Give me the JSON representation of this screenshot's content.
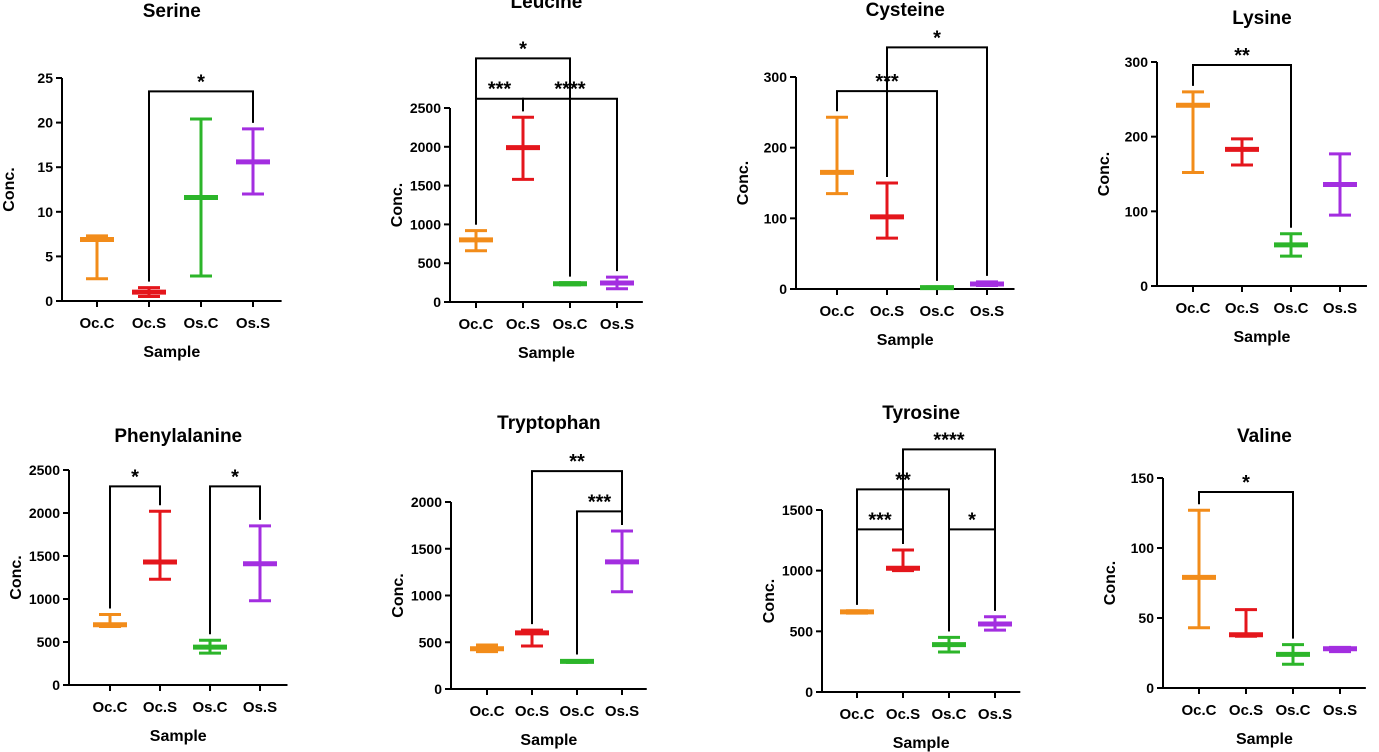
{
  "colors": {
    "Oc.C": "#f28c1a",
    "Oc.S": "#e4161c",
    "Os.C": "#2cb52a",
    "Os.S": "#a32ee0",
    "axis": "#000000"
  },
  "chart_data": [
    {
      "type": "box",
      "title": "Serine",
      "xlabel": "Sample",
      "ylabel": "Conc.",
      "categories": [
        "Oc.C",
        "Oc.S",
        "Os.C",
        "Os.S"
      ],
      "ylim": [
        0,
        25
      ],
      "yticks": [
        "0",
        "5",
        "10",
        "15",
        "20",
        "25"
      ],
      "ytick_values": [
        0,
        5,
        10,
        15,
        20,
        25
      ],
      "series": [
        {
          "category": "Oc.C",
          "min": 2.5,
          "median": 6.9,
          "max": 7.3
        },
        {
          "category": "Oc.S",
          "min": 0.5,
          "median": 1.0,
          "max": 1.5
        },
        {
          "category": "Os.C",
          "min": 2.8,
          "median": 11.6,
          "max": 20.4
        },
        {
          "category": "Os.S",
          "min": 12.0,
          "median": 15.6,
          "max": 19.3
        }
      ],
      "significance": [
        {
          "from": "Oc.S",
          "to": "Os.S",
          "label": "*",
          "y": 23.5
        }
      ]
    },
    {
      "type": "box",
      "title": "Leucine",
      "xlabel": "Sample",
      "ylabel": "Conc.",
      "categories": [
        "Oc.C",
        "Oc.S",
        "Os.C",
        "Os.S"
      ],
      "ylim": [
        0,
        2500
      ],
      "yticks": [
        "0",
        "500",
        "1000",
        "1500",
        "2000",
        "2500"
      ],
      "ytick_values": [
        0,
        500,
        1000,
        1500,
        2000,
        2500
      ],
      "series": [
        {
          "category": "Oc.C",
          "min": 660,
          "median": 800,
          "max": 920
        },
        {
          "category": "Oc.S",
          "min": 1580,
          "median": 1990,
          "max": 2380
        },
        {
          "category": "Os.C",
          "min": 220,
          "median": 235,
          "max": 250
        },
        {
          "category": "Os.S",
          "min": 170,
          "median": 245,
          "max": 320
        }
      ],
      "significance": [
        {
          "from": "Oc.C",
          "to": "Oc.S",
          "label": "***",
          "y": 2620
        },
        {
          "from": "Oc.S",
          "to": "Os.S",
          "label": "****",
          "y": 2620
        },
        {
          "from": "Oc.C",
          "to": "Os.C",
          "label": "*",
          "y": 3140
        }
      ]
    },
    {
      "type": "box",
      "title": "Cysteine",
      "xlabel": "Sample",
      "ylabel": "Conc.",
      "categories": [
        "Oc.C",
        "Oc.S",
        "Os.C",
        "Os.S"
      ],
      "ylim": [
        0,
        300
      ],
      "yticks": [
        "0",
        "100",
        "200",
        "300"
      ],
      "ytick_values": [
        0,
        100,
        200,
        300
      ],
      "series": [
        {
          "category": "Oc.C",
          "min": 135,
          "median": 165,
          "max": 243
        },
        {
          "category": "Oc.S",
          "min": 72,
          "median": 102,
          "max": 150
        },
        {
          "category": "Os.C",
          "min": 1,
          "median": 2,
          "max": 3
        },
        {
          "category": "Os.S",
          "min": 5,
          "median": 7,
          "max": 10
        }
      ],
      "significance": [
        {
          "from": "Oc.C",
          "to": "Os.C",
          "label": "***",
          "y": 280
        },
        {
          "from": "Oc.S",
          "to": "Os.S",
          "label": "*",
          "y": 342
        }
      ]
    },
    {
      "type": "box",
      "title": "Lysine",
      "xlabel": "Sample",
      "ylabel": "Conc.",
      "categories": [
        "Oc.C",
        "Oc.S",
        "Os.C",
        "Os.S"
      ],
      "ylim": [
        0,
        300
      ],
      "yticks": [
        "0",
        "100",
        "200",
        "300"
      ],
      "ytick_values": [
        0,
        100,
        200,
        300
      ],
      "series": [
        {
          "category": "Oc.C",
          "min": 152,
          "median": 242,
          "max": 260
        },
        {
          "category": "Oc.S",
          "min": 162,
          "median": 183,
          "max": 197
        },
        {
          "category": "Os.C",
          "min": 40,
          "median": 55,
          "max": 70
        },
        {
          "category": "Os.S",
          "min": 95,
          "median": 136,
          "max": 177
        }
      ],
      "significance": [
        {
          "from": "Oc.C",
          "to": "Os.C",
          "label": "**",
          "y": 296
        }
      ]
    },
    {
      "type": "box",
      "title": "Phenylalanine",
      "xlabel": "Sample",
      "ylabel": "Conc.",
      "categories": [
        "Oc.C",
        "Oc.S",
        "Os.C",
        "Os.S"
      ],
      "ylim": [
        0,
        2500
      ],
      "yticks": [
        "0",
        "500",
        "1000",
        "1500",
        "2000",
        "2500"
      ],
      "ytick_values": [
        0,
        500,
        1000,
        1500,
        2000,
        2500
      ],
      "series": [
        {
          "category": "Oc.C",
          "min": 680,
          "median": 700,
          "max": 820
        },
        {
          "category": "Oc.S",
          "min": 1230,
          "median": 1430,
          "max": 2020
        },
        {
          "category": "Os.C",
          "min": 370,
          "median": 440,
          "max": 520
        },
        {
          "category": "Os.S",
          "min": 980,
          "median": 1410,
          "max": 1850
        }
      ],
      "significance": [
        {
          "from": "Oc.C",
          "to": "Oc.S",
          "label": "*",
          "y": 2310
        },
        {
          "from": "Os.C",
          "to": "Os.S",
          "label": "*",
          "y": 2310
        }
      ]
    },
    {
      "type": "box",
      "title": "Tryptophan",
      "xlabel": "Sample",
      "ylabel": "Conc.",
      "categories": [
        "Oc.C",
        "Oc.S",
        "Os.C",
        "Os.S"
      ],
      "ylim": [
        0,
        2000
      ],
      "yticks": [
        "0",
        "500",
        "1000",
        "1500",
        "2000"
      ],
      "ytick_values": [
        0,
        500,
        1000,
        1500,
        2000
      ],
      "series": [
        {
          "category": "Oc.C",
          "min": 400,
          "median": 430,
          "max": 470
        },
        {
          "category": "Oc.S",
          "min": 460,
          "median": 600,
          "max": 630
        },
        {
          "category": "Os.C",
          "min": 285,
          "median": 295,
          "max": 305
        },
        {
          "category": "Os.S",
          "min": 1040,
          "median": 1360,
          "max": 1690
        }
      ],
      "significance": [
        {
          "from": "Os.C",
          "to": "Os.S",
          "label": "***",
          "y": 1900
        },
        {
          "from": "Oc.S",
          "to": "Os.S",
          "label": "**",
          "y": 2330
        }
      ]
    },
    {
      "type": "box",
      "title": "Tyrosine",
      "xlabel": "Sample",
      "ylabel": "Conc.",
      "categories": [
        "Oc.C",
        "Oc.S",
        "Os.C",
        "Os.S"
      ],
      "ylim": [
        0,
        1500
      ],
      "yticks": [
        "0",
        "500",
        "1000",
        "1500"
      ],
      "ytick_values": [
        0,
        500,
        1000,
        1500
      ],
      "series": [
        {
          "category": "Oc.C",
          "min": 650,
          "median": 660,
          "max": 670
        },
        {
          "category": "Oc.S",
          "min": 1000,
          "median": 1020,
          "max": 1170
        },
        {
          "category": "Os.C",
          "min": 330,
          "median": 390,
          "max": 450
        },
        {
          "category": "Os.S",
          "min": 510,
          "median": 560,
          "max": 620
        }
      ],
      "significance": [
        {
          "from": "Oc.C",
          "to": "Oc.S",
          "label": "***",
          "y": 1340
        },
        {
          "from": "Os.C",
          "to": "Os.S",
          "label": "*",
          "y": 1340
        },
        {
          "from": "Oc.C",
          "to": "Os.C",
          "label": "**",
          "y": 1670
        },
        {
          "from": "Oc.S",
          "to": "Os.S",
          "label": "****",
          "y": 2000
        }
      ]
    },
    {
      "type": "box",
      "title": "Valine",
      "xlabel": "Sample",
      "ylabel": "Conc.",
      "categories": [
        "Oc.C",
        "Oc.S",
        "Os.C",
        "Os.S"
      ],
      "ylim": [
        0,
        150
      ],
      "yticks": [
        "0",
        "50",
        "100",
        "150"
      ],
      "ytick_values": [
        0,
        50,
        100,
        150
      ],
      "series": [
        {
          "category": "Oc.C",
          "min": 43,
          "median": 79,
          "max": 127
        },
        {
          "category": "Oc.S",
          "min": 37,
          "median": 38,
          "max": 56
        },
        {
          "category": "Os.C",
          "min": 17,
          "median": 24,
          "max": 31
        },
        {
          "category": "Os.S",
          "min": 26,
          "median": 28,
          "max": 29
        }
      ],
      "significance": [
        {
          "from": "Oc.C",
          "to": "Os.C",
          "label": "*",
          "y": 140
        }
      ]
    }
  ]
}
